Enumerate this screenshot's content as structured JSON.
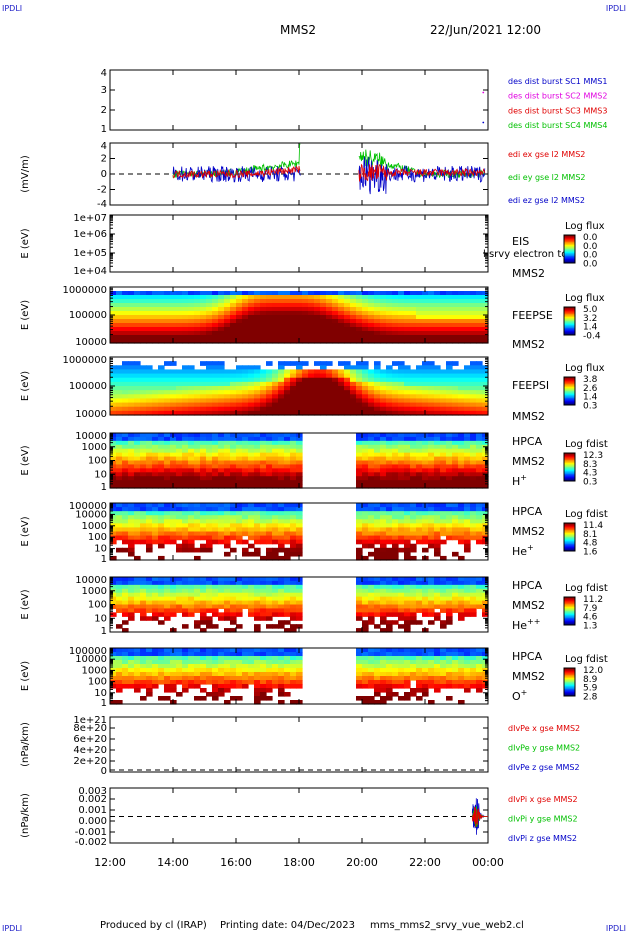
{
  "corners": {
    "top_left": "IPDLI",
    "top_right": "IPDLI",
    "bottom_left": "IPDLI",
    "bottom_right": "IPDLI"
  },
  "header": {
    "title": "MMS2",
    "datetime": "22/Jun/2021 12:00"
  },
  "footer": {
    "produced": "Produced by cl (IRAP)",
    "printing": "Printing date: 04/Dec/2023",
    "file": "mms_mms2_srvy_vue_web2.cl"
  },
  "colors": {
    "blue": "#0000c8",
    "magenta": "#e000e0",
    "red": "#e00000",
    "green": "#00c000",
    "dashed": "#000000"
  },
  "chart_data": [
    {
      "type": "line",
      "name": "burst indicator",
      "yticks": [
        "4",
        "3",
        "2",
        "1"
      ],
      "ylim": [
        0.5,
        4.5
      ],
      "series": [
        {
          "name": "des dist burst SC1 MMS1",
          "color": "#0000c8"
        },
        {
          "name": "des dist burst SC2 MMS2",
          "color": "#e000e0"
        },
        {
          "name": "des dist burst SC3 MMS3",
          "color": "#e00000"
        },
        {
          "name": "des dist burst SC4 MMS4",
          "color": "#00c000"
        }
      ]
    },
    {
      "type": "line",
      "name": "edi E field",
      "ylabel": "(mV/m)",
      "yticks": [
        "4",
        "2",
        "0",
        "-2",
        "-4"
      ],
      "ylim": [
        -5,
        5
      ],
      "series": [
        {
          "name": "edi ex gse l2 MMS2",
          "color": "#e00000"
        },
        {
          "name": "edi ey gse l2 MMS2",
          "color": "#00c000"
        },
        {
          "name": "edi ez gse l2 MMS2",
          "color": "#0000c8"
        }
      ]
    },
    {
      "type": "heatmap",
      "name": "EIS",
      "ylabel": "E (eV)",
      "yticks": [
        "1e+07",
        "1e+06",
        "1e+05",
        "1e+04"
      ],
      "labels": [
        "EIS",
        "MMS2"
      ],
      "overlay_text": "l srvy electron to",
      "cbar_title": "Log flux",
      "cbar_ticks": [
        "0.0",
        "0.0",
        "0.0",
        "0.0"
      ]
    },
    {
      "type": "heatmap",
      "name": "FEEPS electron",
      "ylabel": "E (eV)",
      "yticks": [
        "1000000",
        "100000",
        "10000"
      ],
      "labels": [
        "FEEPSE",
        "MMS2"
      ],
      "cbar_title": "Log flux",
      "cbar_ticks": [
        "5.0",
        "3.2",
        "1.4",
        "-0.4"
      ]
    },
    {
      "type": "heatmap",
      "name": "FEEPS ion",
      "ylabel": "E (eV)",
      "yticks": [
        "1000000",
        "100000",
        "10000"
      ],
      "labels": [
        "FEEPSI",
        "MMS2"
      ],
      "cbar_title": "Log flux",
      "cbar_ticks": [
        "3.8",
        "2.6",
        "1.4",
        "0.3"
      ]
    },
    {
      "type": "heatmap",
      "name": "HPCA H+",
      "ylabel": "E (eV)",
      "yticks": [
        "10000",
        "1000",
        "100",
        "10",
        "1"
      ],
      "labels": [
        "HPCA",
        "MMS2",
        "H+"
      ],
      "cbar_title": "Log fdist",
      "cbar_ticks": [
        "12.3",
        "8.3",
        "4.3",
        "0.3"
      ]
    },
    {
      "type": "heatmap",
      "name": "HPCA He+",
      "ylabel": "E (eV)",
      "yticks": [
        "100000",
        "10000",
        "1000",
        "100",
        "10",
        "1"
      ],
      "labels": [
        "HPCA",
        "MMS2",
        "He+"
      ],
      "cbar_title": "Log fdist",
      "cbar_ticks": [
        "11.4",
        "8.1",
        "4.8",
        "1.6"
      ]
    },
    {
      "type": "heatmap",
      "name": "HPCA He++",
      "ylabel": "E (eV)",
      "yticks": [
        "10000",
        "1000",
        "100",
        "10",
        "1"
      ],
      "labels": [
        "HPCA",
        "MMS2",
        "He++"
      ],
      "cbar_title": "Log fdist",
      "cbar_ticks": [
        "11.2",
        "7.9",
        "4.6",
        "1.3"
      ]
    },
    {
      "type": "heatmap",
      "name": "HPCA O+",
      "ylabel": "E (eV)",
      "yticks": [
        "100000",
        "10000",
        "1000",
        "100",
        "10",
        "1"
      ],
      "labels": [
        "HPCA",
        "MMS2",
        "O+"
      ],
      "cbar_title": "Log fdist",
      "cbar_ticks": [
        "12.0",
        "8.9",
        "5.9",
        "2.8"
      ]
    },
    {
      "type": "line",
      "name": "div Pe",
      "ylabel": "(nPa/km)",
      "yticks": [
        "1e+21",
        "8e+20",
        "6e+20",
        "4e+20",
        "2e+20",
        "0"
      ],
      "series": [
        {
          "name": "dIvPe x gse MMS2",
          "color": "#e00000"
        },
        {
          "name": "dIvPe y gse MMS2",
          "color": "#00c000"
        },
        {
          "name": "dIvPe z gse MMS2",
          "color": "#0000c8"
        }
      ]
    },
    {
      "type": "line",
      "name": "div Pi",
      "ylabel": "(nPa/km)",
      "yticks": [
        "0.003",
        "0.002",
        "0.001",
        "0.000",
        "-0.001",
        "-0.002"
      ],
      "ylim": [
        -0.0028,
        0.003
      ],
      "series": [
        {
          "name": "dIvPi x gse MMS2",
          "color": "#e00000"
        },
        {
          "name": "dIvPi y gse MMS2",
          "color": "#00c000"
        },
        {
          "name": "dIvPi z gse MMS2",
          "color": "#0000c8"
        }
      ]
    }
  ],
  "xaxis": {
    "ticks": [
      "12:00",
      "14:00",
      "16:00",
      "18:00",
      "20:00",
      "22:00",
      "00:00"
    ],
    "xlim_hours": [
      12,
      24
    ]
  },
  "data_gap_hours": [
    18.3,
    19.8
  ]
}
